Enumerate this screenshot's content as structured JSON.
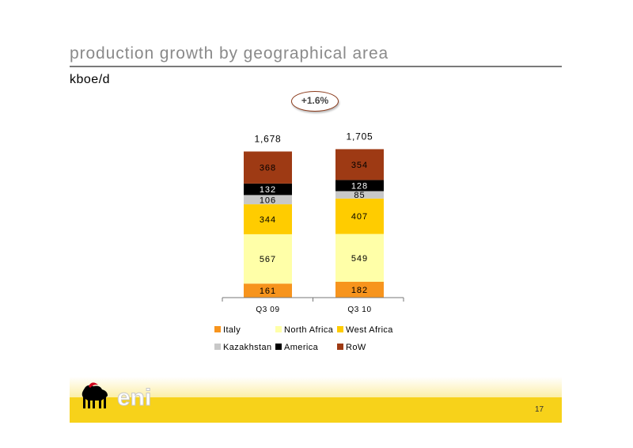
{
  "page": {
    "title": "production growth by geographical area",
    "unit": "kboe/d",
    "growth_badge": "+1.6%",
    "page_number": "17",
    "logo_text": "eni"
  },
  "chart_data": {
    "type": "bar",
    "stacked": true,
    "categories": [
      "Q3 09",
      "Q3 10"
    ],
    "totals": [
      "1,678",
      "1,705"
    ],
    "series": [
      {
        "name": "Italy",
        "color": "#F7941D",
        "values": [
          161,
          182
        ]
      },
      {
        "name": "North Africa",
        "color": "#FFFFA8",
        "values": [
          567,
          549
        ]
      },
      {
        "name": "West Africa",
        "color": "#FFCC00",
        "values": [
          344,
          407
        ]
      },
      {
        "name": "Kazakhstan",
        "color": "#C8C8C8",
        "values": [
          106,
          85
        ]
      },
      {
        "name": "America",
        "color": "#000000",
        "values": [
          132,
          128
        ]
      },
      {
        "name": "RoW",
        "color": "#9E3A14",
        "values": [
          368,
          354
        ]
      }
    ],
    "legend_order": [
      "Italy",
      "North Africa",
      "West Africa",
      "Kazakhstan",
      "America",
      "RoW"
    ],
    "legend_position": "bottom",
    "grid": false
  }
}
